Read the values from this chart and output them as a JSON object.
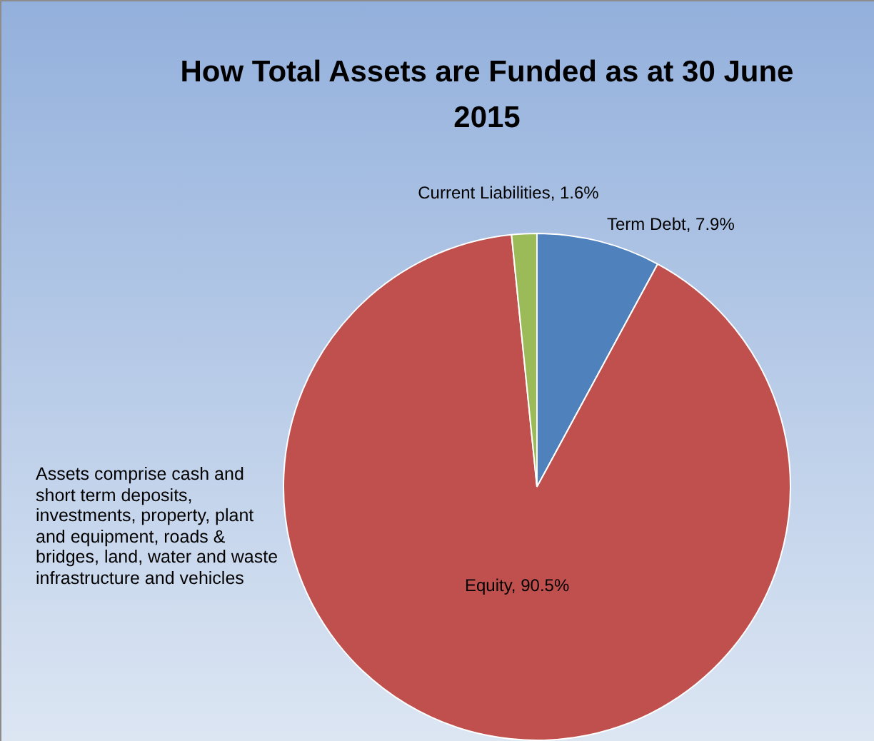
{
  "chart_data": {
    "type": "pie",
    "title": "How Total Assets are Funded as at 30 June 2015",
    "categories": [
      "Term Debt",
      "Equity",
      "Current Liabilities"
    ],
    "values": [
      7.9,
      90.5,
      1.6
    ],
    "colors": [
      "#4f81bd",
      "#c0504d",
      "#9bbb59"
    ],
    "value_labels": [
      "7.9%",
      "90.5%",
      "1.6%"
    ],
    "legend": false,
    "annotations": [
      "Assets comprise cash and short term deposits, investments, property, plant and equipment, roads & bridges, land, water and waste infrastructure and vehicles"
    ]
  }
}
